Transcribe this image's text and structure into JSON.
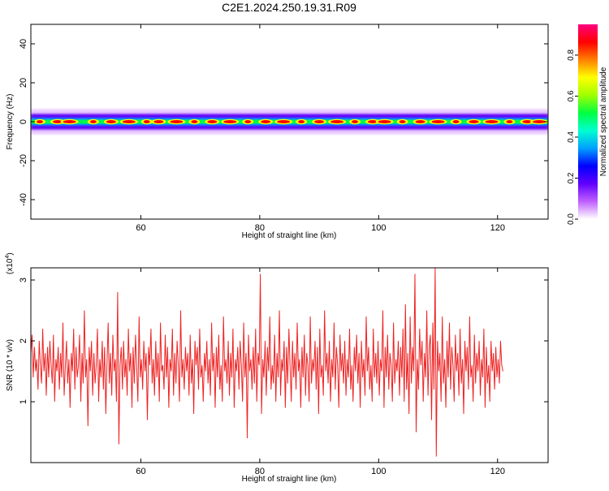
{
  "title": "C2E1.2024.250.19.31.R09",
  "chart_data": [
    {
      "type": "heatmap",
      "xlabel": "Height of straight line (km)",
      "ylabel": "Frequency (Hz)",
      "xlim": [
        41.5,
        128.5
      ],
      "ylim": [
        -50,
        50
      ],
      "x_ticks": [
        "60",
        "80",
        "100",
        "120"
      ],
      "y_ticks": [
        "40",
        "20",
        "0",
        "-20",
        "-40"
      ],
      "x_tick_values": [
        60,
        80,
        100,
        120
      ],
      "y_tick_values": [
        40,
        20,
        0,
        -20,
        -40
      ],
      "band": {
        "center_hz": 0,
        "core_halfwidth_hz": 1.5,
        "outer_halfwidth_hz": 4,
        "note_cells": "strong narrow-band energy near 0 Hz across all heights"
      },
      "hot_spots_km": [
        43,
        46,
        48,
        52,
        55,
        58,
        61,
        63,
        66,
        69,
        72,
        75,
        78,
        81,
        84,
        87,
        90,
        93,
        96,
        99,
        101,
        104,
        107,
        110,
        113,
        116,
        119,
        122,
        125,
        127
      ],
      "colorbar": {
        "label": "Normalized spectral amplitude",
        "ticks": [
          "0.0",
          "0.2",
          "0.4",
          "0.6",
          "0.8"
        ],
        "tick_values": [
          0.0,
          0.2,
          0.4,
          0.6,
          0.8
        ],
        "range": [
          0.0,
          0.95
        ],
        "colormap": [
          "#ffffff",
          "#c060ff",
          "#6000ff",
          "#0000ff",
          "#00a0ff",
          "#00ffd0",
          "#00ff40",
          "#a0ff00",
          "#ffff00",
          "#ff8000",
          "#ff0000",
          "#ff0080"
        ]
      }
    },
    {
      "type": "line",
      "xlabel": "Height of straight line (km)",
      "ylabel": "SNR (10 * v/v)",
      "y_multiplier": "(x10",
      "y_multiplier_exp": "4",
      "y_multiplier_close": ")",
      "xlim": [
        41.5,
        128.5
      ],
      "ylim": [
        0.0,
        3.2
      ],
      "x_ticks": [
        "60",
        "80",
        "100",
        "120"
      ],
      "y_ticks": [
        "3",
        "2",
        "1"
      ],
      "x_tick_values": [
        60,
        80,
        100,
        120
      ],
      "y_tick_values": [
        3,
        2,
        1
      ],
      "line_color": "#ee2222",
      "x_start": 41.5,
      "x_step": 0.2,
      "values": [
        1.8,
        2.1,
        1.4,
        1.9,
        1.5,
        1.7,
        1.2,
        2.0,
        1.6,
        1.3,
        2.2,
        1.5,
        1.8,
        1.1,
        1.9,
        1.4,
        2.0,
        1.6,
        1.3,
        2.1,
        1.0,
        1.7,
        1.5,
        1.9,
        1.2,
        1.8,
        1.4,
        2.3,
        1.1,
        1.6,
        2.0,
        1.3,
        1.7,
        0.9,
        1.8,
        1.5,
        2.2,
        1.2,
        1.9,
        1.4,
        1.6,
        2.1,
        1.0,
        1.8,
        1.3,
        2.5,
        1.4,
        1.7,
        0.6,
        1.9,
        1.5,
        2.0,
        1.1,
        1.8,
        1.3,
        1.6,
        2.2,
        1.0,
        1.7,
        1.4,
        2.0,
        1.2,
        1.9,
        0.8,
        1.6,
        2.3,
        1.3,
        1.8,
        1.1,
        2.1,
        1.5,
        1.7,
        1.0,
        2.8,
        0.3,
        1.6,
        1.9,
        1.2,
        2.0,
        1.4,
        1.7,
        1.1,
        2.2,
        1.5,
        1.8,
        0.9,
        1.9,
        1.3,
        2.1,
        1.6,
        1.0,
        2.4,
        1.4,
        1.7,
        1.2,
        2.0,
        1.5,
        1.8,
        0.7,
        1.9,
        1.6,
        2.2,
        1.3,
        1.7,
        1.1,
        2.0,
        1.4,
        1.8,
        1.0,
        2.3,
        1.5,
        1.6,
        1.2,
        2.1,
        1.4,
        1.9,
        0.9,
        1.7,
        1.5,
        2.2,
        1.1,
        1.8,
        1.3,
        2.0,
        1.6,
        1.0,
        2.5,
        1.4,
        1.7,
        1.2,
        1.9,
        1.5,
        1.8,
        1.1,
        2.1,
        1.3,
        1.7,
        0.8,
        2.0,
        1.6,
        1.9,
        1.2,
        2.2,
        1.4,
        1.6,
        1.0,
        1.8,
        1.5,
        2.0,
        1.3,
        1.7,
        1.1,
        2.3,
        1.5,
        1.8,
        0.9,
        1.9,
        1.4,
        2.1,
        1.2,
        1.6,
        1.0,
        2.4,
        1.5,
        1.7,
        1.3,
        2.0,
        1.1,
        1.8,
        1.4,
        2.2,
        0.9,
        1.7,
        1.5,
        1.9,
        1.2,
        2.0,
        1.6,
        1.0,
        2.3,
        1.4,
        1.8,
        0.4,
        2.1,
        1.5,
        1.7,
        1.2,
        1.9,
        1.3,
        2.2,
        1.0,
        1.8,
        1.6,
        3.1,
        0.8,
        1.7,
        1.4,
        2.0,
        1.1,
        1.9,
        1.5,
        2.4,
        1.2,
        1.6,
        1.3,
        2.1,
        1.0,
        1.8,
        1.4,
        2.5,
        1.1,
        1.7,
        1.5,
        2.0,
        0.9,
        1.9,
        1.3,
        2.2,
        1.6,
        1.0,
        2.0,
        1.4,
        1.8,
        1.2,
        2.3,
        1.5,
        1.7,
        0.9,
        1.9,
        1.4,
        2.1,
        1.1,
        1.8,
        1.6,
        1.0,
        2.4,
        1.3,
        1.7,
        1.5,
        2.0,
        1.2,
        1.9,
        0.8,
        2.2,
        1.4,
        1.6,
        1.1,
        2.5,
        1.5,
        1.8,
        1.3,
        2.0,
        1.0,
        1.7,
        1.4,
        2.3,
        1.2,
        1.9,
        1.6,
        0.9,
        2.1,
        1.5,
        1.8,
        1.3,
        2.0,
        1.1,
        1.7,
        1.4,
        2.2,
        1.2,
        1.6,
        1.0,
        1.9,
        1.5,
        2.1,
        1.3,
        1.8,
        0.9,
        2.0,
        1.4,
        1.7,
        1.1,
        2.4,
        1.5,
        1.9,
        1.2,
        1.6,
        1.0,
        2.2,
        1.4,
        1.8,
        1.3,
        2.0,
        1.1,
        1.7,
        1.5,
        2.5,
        0.9,
        1.9,
        1.4,
        2.1,
        1.2,
        1.8,
        1.6,
        1.0,
        2.3,
        1.3,
        1.7,
        1.5,
        2.0,
        1.1,
        1.9,
        1.4,
        2.2,
        1.0,
        2.6,
        1.2,
        1.8,
        0.8,
        2.4,
        1.3,
        1.9,
        1.5,
        3.1,
        0.5,
        1.7,
        1.2,
        2.2,
        1.6,
        2.0,
        1.0,
        1.8,
        1.4,
        2.5,
        1.1,
        1.9,
        2.1,
        0.7,
        2.3,
        1.2,
        3.2,
        0.1,
        2.0,
        1.5,
        1.8,
        1.0,
        2.4,
        1.3,
        1.7,
        0.9,
        2.0,
        1.4,
        2.3,
        1.2,
        1.9,
        1.6,
        1.0,
        2.1,
        1.5,
        1.8,
        1.1,
        2.2,
        1.3,
        1.7,
        0.8,
        2.0,
        1.5,
        1.9,
        1.2,
        2.4,
        1.4,
        1.6,
        1.0,
        2.1,
        1.3,
        1.8,
        1.5,
        2.0,
        1.1,
        1.7,
        1.4,
        2.2,
        0.9,
        1.9,
        1.3,
        1.6,
        1.0,
        2.0,
        1.5,
        1.8,
        1.2,
        1.9,
        1.4,
        1.7,
        1.3,
        2.0,
        1.6,
        1.5
      ]
    }
  ]
}
